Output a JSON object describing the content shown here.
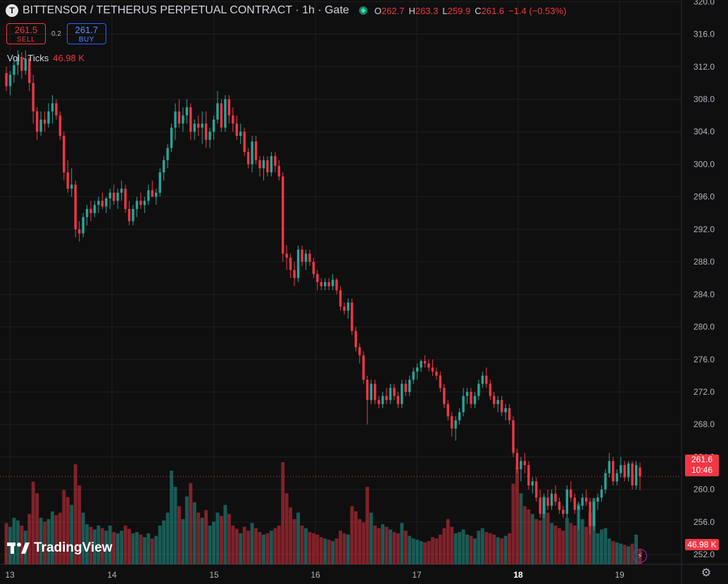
{
  "header": {
    "symbol_icon": "T",
    "title": "BITTENSOR / TETHERUS PERPETUAL CONTRACT · 1h · Gate",
    "ohlc": {
      "o_label": "O",
      "o": "262.7",
      "h_label": "H",
      "h": "263.3",
      "l_label": "L",
      "l": "259.9",
      "c_label": "C",
      "c": "261.6",
      "change": "−1.4 (−0.53%)"
    }
  },
  "trade": {
    "sell_price": "261.5",
    "sell_label": "SELL",
    "spread": "0.2",
    "buy_price": "261.7",
    "buy_label": "BUY"
  },
  "volume_legend": {
    "label": "Vol · Ticks",
    "value": "46.98 K"
  },
  "logo": {
    "text": "TradingView"
  },
  "last_price_tag": {
    "price": "261.6",
    "countdown": "10:46"
  },
  "volume_tag": {
    "value": "46.98 K"
  },
  "colors": {
    "up": "#26a69a",
    "down": "#f23645",
    "background": "#0f0f0f",
    "grid": "#1f1f1f"
  },
  "icons": {
    "live": "live-status-dot",
    "bolt": "lightning-icon",
    "settings": "gear-icon"
  },
  "chart_data": {
    "type": "candlestick",
    "interval": "1h",
    "y_axis": {
      "ticks": [
        252.0,
        256.0,
        260.0,
        264.0,
        268.0,
        272.0,
        276.0,
        280.0,
        284.0,
        288.0,
        292.0,
        296.0,
        300.0,
        304.0,
        308.0,
        312.0,
        316.0,
        320.0
      ],
      "range": [
        250.8,
        320.2
      ]
    },
    "x_axis": {
      "ticks": [
        "13",
        "14",
        "15",
        "16",
        "17",
        "18",
        "19"
      ],
      "bold_tick": "18"
    },
    "current_price": 261.6,
    "volume_max": 158,
    "candles": [
      [
        311.2,
        312.0,
        309.0,
        309.6,
        64
      ],
      [
        309.6,
        311.5,
        308.5,
        311.0,
        58
      ],
      [
        311.0,
        313.0,
        310.0,
        312.2,
        72
      ],
      [
        312.2,
        314.0,
        311.0,
        313.2,
        68
      ],
      [
        313.2,
        313.8,
        310.5,
        311.5,
        60
      ],
      [
        311.5,
        314.0,
        311.0,
        313.0,
        52
      ],
      [
        313.0,
        313.2,
        309.0,
        310.0,
        78
      ],
      [
        310.0,
        311.0,
        305.0,
        306.5,
        128
      ],
      [
        306.5,
        307.0,
        303.0,
        304.0,
        110
      ],
      [
        304.0,
        306.5,
        303.5,
        305.5,
        72
      ],
      [
        305.5,
        306.5,
        304.0,
        305.0,
        66
      ],
      [
        305.0,
        307.5,
        304.5,
        306.5,
        70
      ],
      [
        306.5,
        308.5,
        305.0,
        307.5,
        82
      ],
      [
        307.5,
        308.0,
        305.5,
        306.0,
        76
      ],
      [
        306.0,
        306.5,
        303.0,
        303.5,
        80
      ],
      [
        303.5,
        304.0,
        298.0,
        299.0,
        115
      ],
      [
        299.0,
        300.5,
        296.5,
        297.0,
        104
      ],
      [
        297.0,
        299.5,
        296.0,
        297.5,
        92
      ],
      [
        297.5,
        298.0,
        291.0,
        292.0,
        155
      ],
      [
        292.0,
        293.0,
        290.5,
        291.5,
        122
      ],
      [
        291.5,
        294.0,
        291.0,
        293.5,
        80
      ],
      [
        293.5,
        295.0,
        292.5,
        294.5,
        62
      ],
      [
        294.5,
        295.5,
        293.0,
        294.0,
        58
      ],
      [
        294.0,
        295.5,
        293.5,
        295.0,
        54
      ],
      [
        295.0,
        296.0,
        294.0,
        295.5,
        60
      ],
      [
        295.5,
        296.5,
        294.5,
        294.8,
        56
      ],
      [
        294.8,
        296.0,
        294.0,
        295.8,
        52
      ],
      [
        295.8,
        297.0,
        294.5,
        296.5,
        60
      ],
      [
        296.5,
        297.5,
        295.0,
        295.5,
        50
      ],
      [
        295.5,
        297.0,
        294.5,
        296.5,
        48
      ],
      [
        296.5,
        298.0,
        295.5,
        297.0,
        52
      ],
      [
        297.0,
        297.5,
        294.0,
        294.5,
        60
      ],
      [
        294.5,
        295.5,
        292.5,
        293.0,
        55
      ],
      [
        293.0,
        295.0,
        292.5,
        294.5,
        48
      ],
      [
        294.5,
        296.0,
        293.5,
        295.5,
        50
      ],
      [
        295.5,
        296.5,
        294.5,
        295.0,
        46
      ],
      [
        295.0,
        296.0,
        294.0,
        295.5,
        42
      ],
      [
        295.5,
        297.5,
        295.0,
        296.8,
        48
      ],
      [
        296.8,
        298.0,
        296.0,
        296.0,
        40
      ],
      [
        296.0,
        297.0,
        295.0,
        296.5,
        44
      ],
      [
        296.5,
        299.5,
        296.0,
        299.0,
        60
      ],
      [
        299.0,
        301.0,
        298.0,
        300.5,
        68
      ],
      [
        300.5,
        302.5,
        299.5,
        302.0,
        80
      ],
      [
        302.0,
        305.0,
        301.5,
        304.5,
        145
      ],
      [
        304.5,
        307.5,
        303.0,
        306.5,
        120
      ],
      [
        306.5,
        308.0,
        304.5,
        305.0,
        90
      ],
      [
        305.0,
        307.0,
        304.0,
        306.0,
        70
      ],
      [
        306.0,
        308.0,
        305.0,
        307.0,
        105
      ],
      [
        307.0,
        307.5,
        303.0,
        304.0,
        126
      ],
      [
        304.0,
        305.5,
        303.0,
        305.0,
        96
      ],
      [
        305.0,
        306.0,
        303.5,
        304.5,
        80
      ],
      [
        304.5,
        306.5,
        302.5,
        305.0,
        72
      ],
      [
        305.0,
        306.5,
        302.0,
        303.0,
        84
      ],
      [
        303.0,
        304.5,
        302.0,
        304.0,
        60
      ],
      [
        304.0,
        306.0,
        303.0,
        305.5,
        66
      ],
      [
        305.5,
        309.0,
        305.0,
        307.5,
        80
      ],
      [
        307.5,
        308.0,
        304.0,
        304.5,
        75
      ],
      [
        304.5,
        308.5,
        304.0,
        308.0,
        92
      ],
      [
        308.0,
        308.5,
        305.0,
        306.0,
        78
      ],
      [
        306.0,
        307.0,
        304.0,
        305.0,
        60
      ],
      [
        305.0,
        306.0,
        303.0,
        303.5,
        55
      ],
      [
        303.5,
        305.0,
        302.5,
        304.0,
        48
      ],
      [
        304.0,
        304.5,
        301.0,
        301.5,
        58
      ],
      [
        301.5,
        302.0,
        299.5,
        300.0,
        52
      ],
      [
        300.0,
        303.5,
        299.0,
        302.8,
        64
      ],
      [
        302.8,
        303.5,
        300.0,
        300.5,
        56
      ],
      [
        300.5,
        301.0,
        298.5,
        299.5,
        50
      ],
      [
        299.5,
        301.0,
        298.0,
        300.5,
        46
      ],
      [
        300.5,
        301.0,
        298.5,
        299.0,
        48
      ],
      [
        299.0,
        301.5,
        298.5,
        301.0,
        52
      ],
      [
        301.0,
        301.5,
        299.0,
        299.8,
        56
      ],
      [
        299.8,
        300.5,
        298.0,
        298.5,
        60
      ],
      [
        298.5,
        299.0,
        288.0,
        289.0,
        158
      ],
      [
        289.0,
        290.0,
        287.0,
        288.5,
        110
      ],
      [
        288.5,
        289.0,
        286.0,
        287.0,
        88
      ],
      [
        287.0,
        288.0,
        285.0,
        286.0,
        70
      ],
      [
        286.0,
        290.0,
        285.5,
        289.5,
        80
      ],
      [
        289.5,
        290.0,
        287.5,
        288.0,
        60
      ],
      [
        288.0,
        289.5,
        287.0,
        289.0,
        56
      ],
      [
        289.0,
        289.5,
        287.5,
        288.0,
        50
      ],
      [
        288.0,
        288.5,
        286.0,
        286.5,
        48
      ],
      [
        286.5,
        287.0,
        284.5,
        285.5,
        46
      ],
      [
        285.5,
        286.0,
        284.5,
        285.0,
        42
      ],
      [
        285.0,
        286.0,
        284.5,
        285.5,
        40
      ],
      [
        285.5,
        286.0,
        284.5,
        285.0,
        38
      ],
      [
        285.0,
        286.5,
        284.5,
        285.8,
        36
      ],
      [
        285.8,
        286.0,
        284.0,
        284.5,
        40
      ],
      [
        284.5,
        285.0,
        282.0,
        282.5,
        52
      ],
      [
        282.5,
        283.0,
        281.5,
        282.0,
        48
      ],
      [
        282.0,
        283.5,
        281.0,
        283.0,
        46
      ],
      [
        283.0,
        283.5,
        279.0,
        279.5,
        90
      ],
      [
        279.5,
        280.0,
        277.0,
        277.5,
        82
      ],
      [
        277.5,
        278.0,
        275.5,
        276.5,
        70
      ],
      [
        276.5,
        277.0,
        273.0,
        273.5,
        65
      ],
      [
        273.5,
        274.0,
        268.0,
        271.0,
        120
      ],
      [
        271.0,
        273.5,
        270.5,
        273.0,
        80
      ],
      [
        273.0,
        273.5,
        270.5,
        271.0,
        60
      ],
      [
        271.0,
        271.5,
        270.0,
        270.5,
        56
      ],
      [
        270.5,
        272.0,
        270.0,
        271.5,
        62
      ],
      [
        271.5,
        272.5,
        270.5,
        271.0,
        58
      ],
      [
        271.0,
        273.0,
        270.5,
        272.5,
        54
      ],
      [
        272.5,
        273.0,
        271.0,
        271.5,
        50
      ],
      [
        271.5,
        272.0,
        270.0,
        270.5,
        48
      ],
      [
        270.5,
        273.5,
        270.0,
        273.0,
        64
      ],
      [
        273.0,
        273.5,
        271.5,
        272.0,
        52
      ],
      [
        272.0,
        274.0,
        271.5,
        273.5,
        44
      ],
      [
        273.5,
        275.0,
        273.0,
        274.5,
        40
      ],
      [
        274.5,
        275.5,
        273.5,
        275.0,
        38
      ],
      [
        275.0,
        276.0,
        274.5,
        275.8,
        36
      ],
      [
        275.8,
        276.5,
        275.0,
        275.5,
        34
      ],
      [
        275.5,
        276.0,
        274.5,
        275.0,
        36
      ],
      [
        275.0,
        276.0,
        274.0,
        274.5,
        42
      ],
      [
        274.5,
        275.0,
        273.5,
        274.0,
        40
      ],
      [
        274.0,
        274.5,
        272.0,
        272.5,
        46
      ],
      [
        272.5,
        273.0,
        270.0,
        270.5,
        56
      ],
      [
        270.5,
        271.0,
        268.5,
        269.0,
        70
      ],
      [
        269.0,
        269.5,
        266.5,
        267.5,
        58
      ],
      [
        267.5,
        269.0,
        266.0,
        268.5,
        48
      ],
      [
        268.5,
        270.0,
        268.0,
        269.5,
        50
      ],
      [
        269.5,
        272.5,
        269.0,
        271.5,
        54
      ],
      [
        271.5,
        272.5,
        270.5,
        272.0,
        46
      ],
      [
        272.0,
        272.5,
        270.0,
        270.5,
        44
      ],
      [
        270.5,
        272.0,
        270.0,
        271.5,
        40
      ],
      [
        271.5,
        273.5,
        271.0,
        273.0,
        52
      ],
      [
        273.0,
        274.5,
        272.5,
        274.0,
        56
      ],
      [
        274.0,
        275.0,
        272.5,
        273.0,
        50
      ],
      [
        273.0,
        273.5,
        271.0,
        271.5,
        48
      ],
      [
        271.5,
        272.0,
        270.0,
        270.5,
        46
      ],
      [
        270.5,
        271.5,
        269.5,
        271.0,
        42
      ],
      [
        271.0,
        271.5,
        269.0,
        269.5,
        40
      ],
      [
        269.5,
        270.5,
        268.5,
        270.0,
        44
      ],
      [
        270.0,
        270.5,
        268.0,
        268.5,
        48
      ],
      [
        268.5,
        269.0,
        264.0,
        264.5,
        125
      ],
      [
        264.5,
        265.0,
        262.0,
        262.5,
        150
      ],
      [
        262.5,
        264.0,
        261.0,
        263.5,
        110
      ],
      [
        263.5,
        264.5,
        262.0,
        263.0,
        90
      ],
      [
        263.0,
        263.5,
        260.0,
        260.5,
        85
      ],
      [
        260.5,
        261.5,
        259.5,
        261.0,
        78
      ],
      [
        261.0,
        261.5,
        258.5,
        259.0,
        70
      ],
      [
        259.0,
        260.0,
        256.5,
        257.0,
        68
      ],
      [
        257.0,
        259.5,
        256.5,
        259.0,
        105
      ],
      [
        259.0,
        260.0,
        257.5,
        258.0,
        80
      ],
      [
        258.0,
        260.0,
        257.5,
        259.5,
        64
      ],
      [
        259.5,
        260.5,
        258.0,
        258.5,
        60
      ],
      [
        258.5,
        259.0,
        257.0,
        257.5,
        56
      ],
      [
        257.5,
        258.0,
        256.5,
        257.0,
        52
      ],
      [
        257.0,
        260.5,
        256.5,
        260.0,
        72
      ],
      [
        260.0,
        261.0,
        258.5,
        259.0,
        64
      ],
      [
        259.0,
        259.5,
        257.0,
        257.5,
        60
      ],
      [
        257.5,
        258.5,
        255.0,
        258.0,
        94
      ],
      [
        258.0,
        259.5,
        257.5,
        259.0,
        70
      ],
      [
        259.0,
        260.0,
        258.0,
        258.5,
        58
      ],
      [
        258.5,
        259.0,
        254.5,
        255.5,
        80
      ],
      [
        255.5,
        259.0,
        255.0,
        258.5,
        102
      ],
      [
        258.5,
        259.5,
        257.5,
        259.0,
        48
      ],
      [
        259.0,
        260.5,
        258.5,
        260.0,
        54
      ],
      [
        260.0,
        262.5,
        259.5,
        262.0,
        56
      ],
      [
        262.0,
        264.5,
        261.5,
        263.5,
        40
      ],
      [
        263.5,
        264.0,
        260.5,
        261.0,
        36
      ],
      [
        261.0,
        262.5,
        260.5,
        262.0,
        34
      ],
      [
        262.0,
        264.0,
        261.5,
        263.0,
        32
      ],
      [
        263.0,
        263.5,
        261.0,
        261.5,
        30
      ],
      [
        261.5,
        263.5,
        261.0,
        263.2,
        28
      ],
      [
        263.2,
        263.5,
        260.0,
        260.5,
        32
      ],
      [
        260.5,
        263.5,
        260.0,
        263.0,
        46
      ],
      [
        262.7,
        263.3,
        259.9,
        261.6,
        24
      ]
    ]
  }
}
